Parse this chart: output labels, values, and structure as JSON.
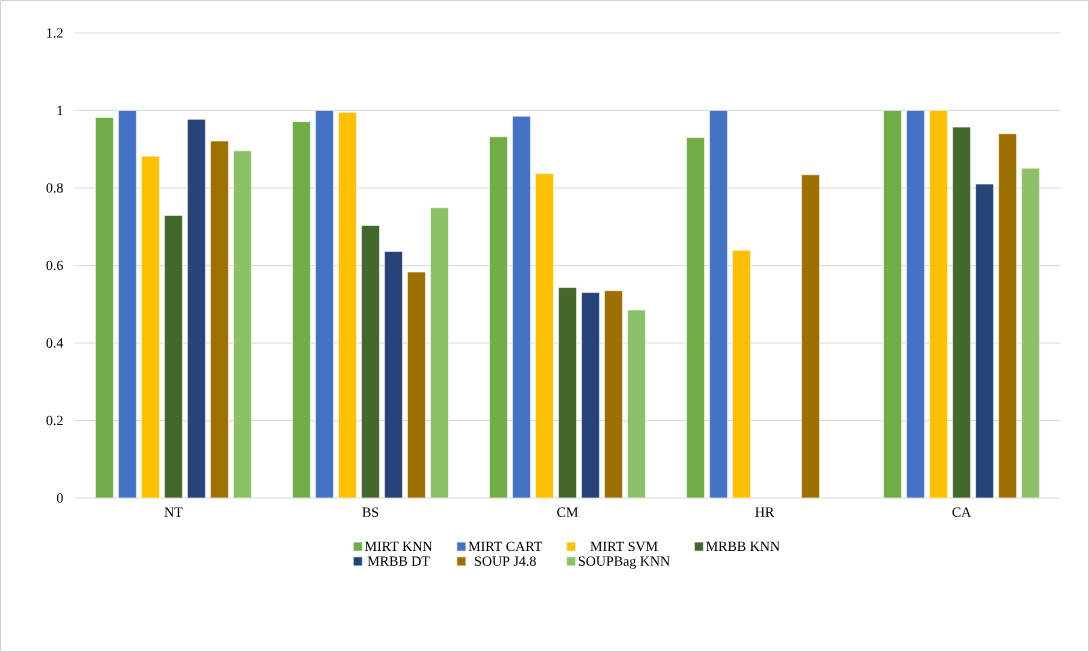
{
  "chart_data": {
    "type": "bar",
    "categories": [
      "NT",
      "BS",
      "CM",
      "HR",
      "CA"
    ],
    "series": [
      {
        "name": "MIRT KNN",
        "color": "#70ad47",
        "values": [
          0.982,
          0.971,
          0.932,
          0.93,
          1.0
        ]
      },
      {
        "name": "MIRT CART",
        "color": "#4472c4",
        "values": [
          1.0,
          1.0,
          0.985,
          1.0,
          1.0
        ]
      },
      {
        "name": "MIRT SVM",
        "color": "#ffc000",
        "values": [
          0.882,
          0.995,
          0.837,
          0.639,
          1.0
        ]
      },
      {
        "name": "MRBB KNN",
        "color": "#43682b",
        "values": [
          0.729,
          0.703,
          0.543,
          null,
          0.957
        ]
      },
      {
        "name": "MRBB DT",
        "color": "#264478",
        "values": [
          0.977,
          0.636,
          0.53,
          null,
          0.81
        ]
      },
      {
        "name": "SOUP J4.8",
        "color": "#9e7000",
        "values": [
          0.921,
          0.583,
          0.535,
          0.834,
          0.94
        ]
      },
      {
        "name": "SOUPBag KNN",
        "color": "#8cc168",
        "values": [
          0.896,
          0.749,
          0.485,
          null,
          0.851
        ]
      }
    ],
    "ylim": [
      0,
      1.2
    ],
    "yticks": [
      0,
      0.2,
      0.4,
      0.6,
      0.8,
      1,
      1.2
    ],
    "grid": "y",
    "legend": "bottom"
  }
}
